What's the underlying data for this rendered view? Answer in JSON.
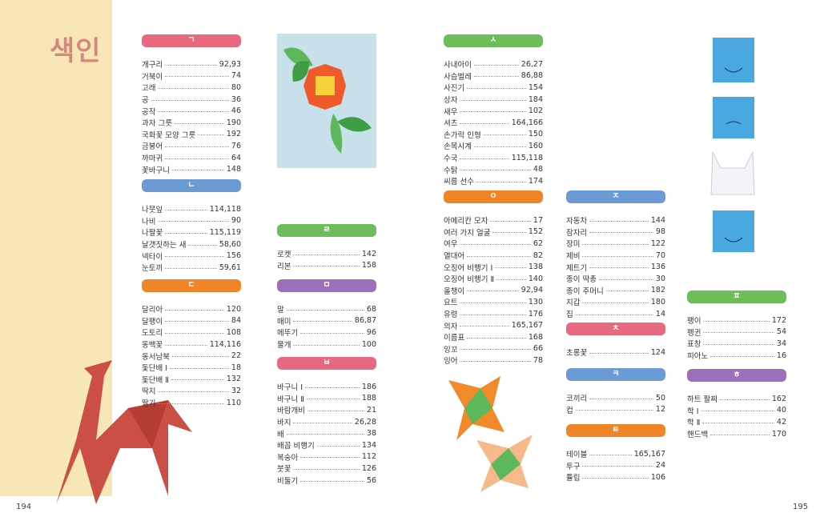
{
  "title": "색인",
  "page_left": "194",
  "page_right": "195",
  "colors": {
    "pink": "#e8687f",
    "blue": "#6b9bd5",
    "orange": "#ef8527",
    "green": "#6dbd5b",
    "purple": "#9a70b8",
    "band": "#f7e7b6",
    "title": "#d4897e"
  },
  "sections": [
    {
      "id": "giyeok",
      "letter": "ㄱ",
      "color": "#e8687f",
      "entries": [
        {
          "name": "개구리",
          "page": "92,93"
        },
        {
          "name": "거북이",
          "page": "74"
        },
        {
          "name": "고래",
          "page": "80"
        },
        {
          "name": "공",
          "page": "36"
        },
        {
          "name": "공작",
          "page": "46"
        },
        {
          "name": "과자 그릇",
          "page": "190"
        },
        {
          "name": "국화꽃 모양 그릇",
          "page": "192"
        },
        {
          "name": "금붕어",
          "page": "76"
        },
        {
          "name": "까마귀",
          "page": "64"
        },
        {
          "name": "꽃바구니",
          "page": "148"
        }
      ]
    },
    {
      "id": "nieun",
      "letter": "ㄴ",
      "color": "#6b9bd5",
      "entries": [
        {
          "name": "나뭇잎",
          "page": "114,118"
        },
        {
          "name": "나비",
          "page": "90"
        },
        {
          "name": "나팔꽃",
          "page": "115,119"
        },
        {
          "name": "날갯짓하는 새",
          "page": "58,60"
        },
        {
          "name": "넥타이",
          "page": "156"
        },
        {
          "name": "눈토끼",
          "page": "59,61"
        }
      ]
    },
    {
      "id": "digeut",
      "letter": "ㄷ",
      "color": "#ef8527",
      "entries": [
        {
          "name": "달리아",
          "page": "120"
        },
        {
          "name": "달팽이",
          "page": "84"
        },
        {
          "name": "도토리",
          "page": "108"
        },
        {
          "name": "동백꽃",
          "page": "114,116"
        },
        {
          "name": "동서남북",
          "page": "22"
        },
        {
          "name": "돛단배 Ⅰ",
          "page": "18"
        },
        {
          "name": "돛단배 Ⅱ",
          "page": "132"
        },
        {
          "name": "딱지",
          "page": "32"
        },
        {
          "name": "딸기",
          "page": "110"
        }
      ]
    },
    {
      "id": "rieul",
      "letter": "ㄹ",
      "color": "#6dbd5b",
      "entries": [
        {
          "name": "로켓",
          "page": "142"
        },
        {
          "name": "리본",
          "page": "158"
        }
      ]
    },
    {
      "id": "mieum",
      "letter": "ㅁ",
      "color": "#9a70b8",
      "entries": [
        {
          "name": "말",
          "page": "68"
        },
        {
          "name": "매미",
          "page": "86,87"
        },
        {
          "name": "메뚜기",
          "page": "96"
        },
        {
          "name": "물개",
          "page": "100"
        }
      ]
    },
    {
      "id": "bieup",
      "letter": "ㅂ",
      "color": "#e8687f",
      "entries": [
        {
          "name": "바구니 Ⅰ",
          "page": "186"
        },
        {
          "name": "바구니 Ⅱ",
          "page": "188"
        },
        {
          "name": "바람개비",
          "page": "21"
        },
        {
          "name": "바지",
          "page": "26,28"
        },
        {
          "name": "배",
          "page": "38"
        },
        {
          "name": "배꼽 비행기",
          "page": "134"
        },
        {
          "name": "복숭아",
          "page": "112"
        },
        {
          "name": "붓꽃",
          "page": "126"
        },
        {
          "name": "비둘기",
          "page": "56"
        }
      ]
    },
    {
      "id": "siot",
      "letter": "ㅅ",
      "color": "#6dbd5b",
      "entries": [
        {
          "name": "사내아이",
          "page": "26,27"
        },
        {
          "name": "사슴벌레",
          "page": "86,88"
        },
        {
          "name": "사진기",
          "page": "154"
        },
        {
          "name": "상자",
          "page": "184"
        },
        {
          "name": "새우",
          "page": "102"
        },
        {
          "name": "셔츠",
          "page": "164,166"
        },
        {
          "name": "손가락 인형",
          "page": "150"
        },
        {
          "name": "손목시계",
          "page": "160"
        },
        {
          "name": "수국",
          "page": "115,118"
        },
        {
          "name": "수탉",
          "page": "48"
        },
        {
          "name": "씨름 선수",
          "page": "174"
        }
      ]
    },
    {
      "id": "ieung",
      "letter": "ㅇ",
      "color": "#ef8527",
      "entries": [
        {
          "name": "아메리칸 모자",
          "page": "17"
        },
        {
          "name": "여러 가지 얼굴",
          "page": "152"
        },
        {
          "name": "여우",
          "page": "62"
        },
        {
          "name": "열대어",
          "page": "82"
        },
        {
          "name": "오징어 비행기 Ⅰ",
          "page": "138"
        },
        {
          "name": "오징어 비행기 Ⅱ",
          "page": "140"
        },
        {
          "name": "올챙이",
          "page": "92,94"
        },
        {
          "name": "요트",
          "page": "130"
        },
        {
          "name": "유령",
          "page": "176"
        },
        {
          "name": "의자",
          "page": "165,167"
        },
        {
          "name": "이름표",
          "page": "168"
        },
        {
          "name": "잉꼬",
          "page": "66"
        },
        {
          "name": "잉어",
          "page": "78"
        }
      ]
    },
    {
      "id": "jieut",
      "letter": "ㅈ",
      "color": "#6b9bd5",
      "entries": [
        {
          "name": "자동차",
          "page": "144"
        },
        {
          "name": "잠자리",
          "page": "98"
        },
        {
          "name": "장미",
          "page": "122"
        },
        {
          "name": "제비",
          "page": "70"
        },
        {
          "name": "제트기",
          "page": "136"
        },
        {
          "name": "종이 딱총",
          "page": "30"
        },
        {
          "name": "종이 주머니",
          "page": "182"
        },
        {
          "name": "지갑",
          "page": "180"
        },
        {
          "name": "집",
          "page": "14"
        }
      ]
    },
    {
      "id": "chieut",
      "letter": "ㅊ",
      "color": "#e8687f",
      "entries": [
        {
          "name": "초롱꽃",
          "page": "124"
        }
      ]
    },
    {
      "id": "kieuk",
      "letter": "ㅋ",
      "color": "#6b9bd5",
      "entries": [
        {
          "name": "코끼리",
          "page": "50"
        },
        {
          "name": "컵",
          "page": "12"
        }
      ]
    },
    {
      "id": "tieut",
      "letter": "ㅌ",
      "color": "#ef8527",
      "entries": [
        {
          "name": "테이블",
          "page": "165,167"
        },
        {
          "name": "투구",
          "page": "24"
        },
        {
          "name": "튤립",
          "page": "106"
        }
      ]
    },
    {
      "id": "pieup",
      "letter": "ㅍ",
      "color": "#6dbd5b",
      "entries": [
        {
          "name": "팽이",
          "page": "172"
        },
        {
          "name": "펭귄",
          "page": "54"
        },
        {
          "name": "표창",
          "page": "34"
        },
        {
          "name": "피아노",
          "page": "16"
        }
      ]
    },
    {
      "id": "hieut",
      "letter": "ㅎ",
      "color": "#9a70b8",
      "entries": [
        {
          "name": "하트 팔찌",
          "page": "162"
        },
        {
          "name": "학 Ⅰ",
          "page": "40"
        },
        {
          "name": "학 Ⅱ",
          "page": "42"
        },
        {
          "name": "핸드백",
          "page": "170"
        }
      ]
    }
  ]
}
